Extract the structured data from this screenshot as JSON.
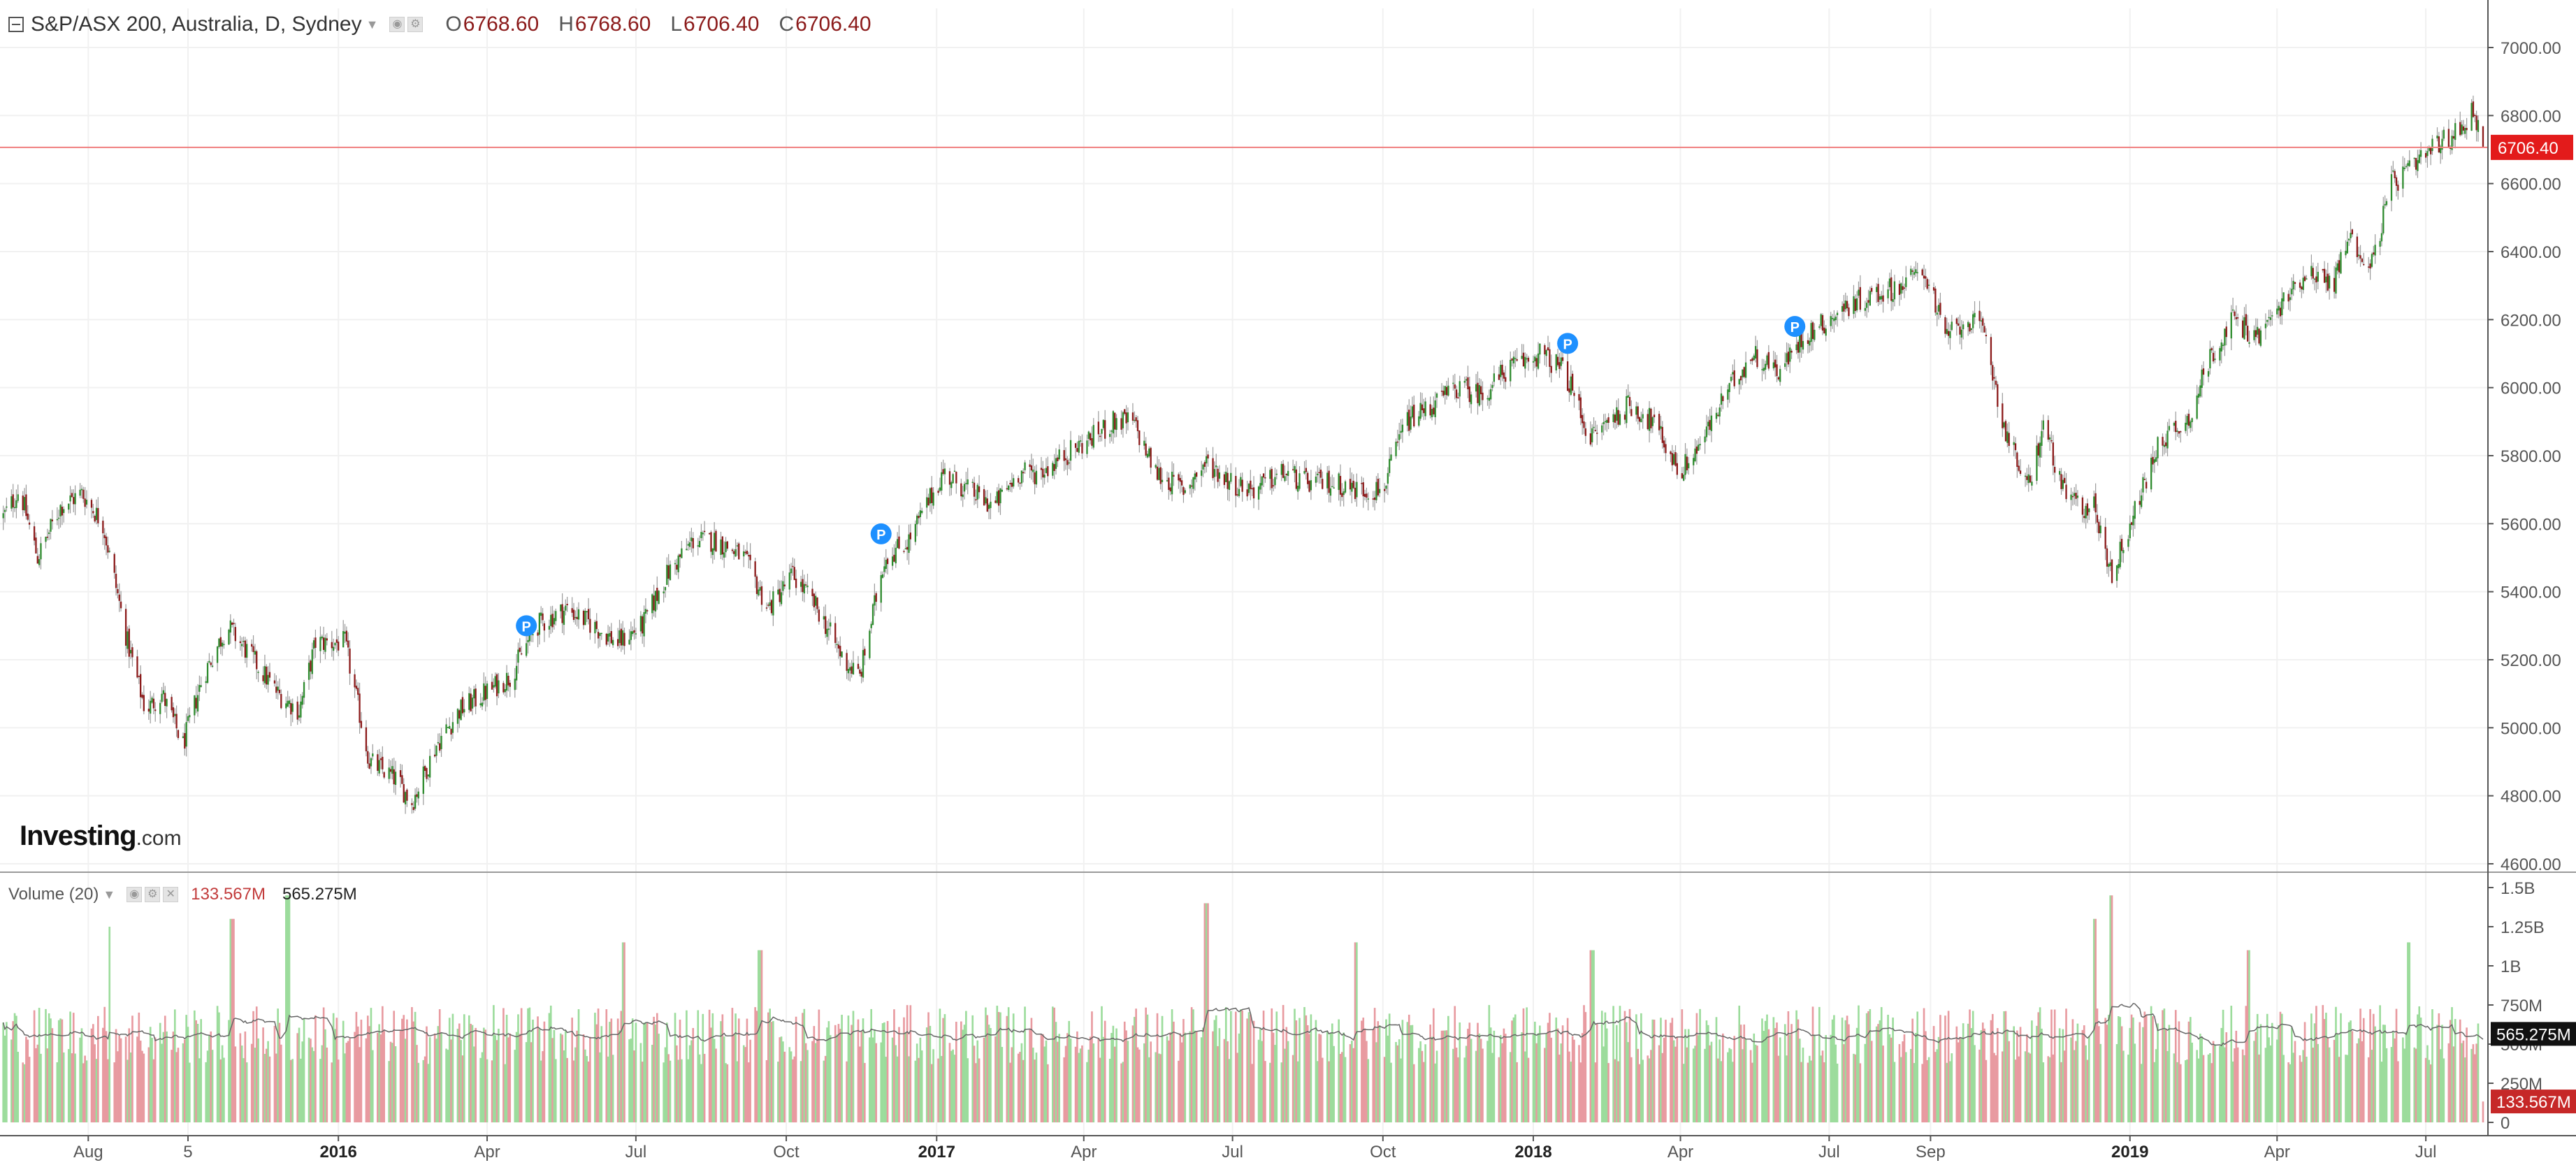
{
  "chart_data": [
    {
      "type": "candlestick",
      "title": "S&P/ASX 200, Australia, D, Sydney",
      "ohlc_labels": {
        "o": "O",
        "h": "H",
        "l": "L",
        "c": "C"
      },
      "ohlc_values": {
        "o": "6768.60",
        "h": "6768.60",
        "l": "6706.40",
        "c": "6706.40"
      },
      "last_price_label": "6706.40",
      "last_price": 6706.4,
      "ylim": [
        4600,
        7000
      ],
      "y_ticks": [
        "4600.00",
        "4800.00",
        "5000.00",
        "5200.00",
        "5400.00",
        "5600.00",
        "5800.00",
        "6000.00",
        "6200.00",
        "6400.00",
        "6600.00",
        "6800.00",
        "7000.00"
      ],
      "x_ticks": [
        {
          "label": "Aug",
          "date": "2015-08",
          "major": false
        },
        {
          "label": "5",
          "date": "2015-10",
          "major": false
        },
        {
          "label": "2016",
          "date": "2016-01",
          "major": true
        },
        {
          "label": "Apr",
          "date": "2016-04",
          "major": false
        },
        {
          "label": "Jul",
          "date": "2016-07",
          "major": false
        },
        {
          "label": "Oct",
          "date": "2016-10",
          "major": false
        },
        {
          "label": "2017",
          "date": "2017-01",
          "major": true
        },
        {
          "label": "Apr",
          "date": "2017-04",
          "major": false
        },
        {
          "label": "Jul",
          "date": "2017-07",
          "major": false
        },
        {
          "label": "Oct",
          "date": "2017-10",
          "major": false
        },
        {
          "label": "2018",
          "date": "2018-01",
          "major": true
        },
        {
          "label": "Apr",
          "date": "2018-04",
          "major": false
        },
        {
          "label": "Jul",
          "date": "2018-07",
          "major": false
        },
        {
          "label": "Sep",
          "date": "2018-09",
          "major": false
        },
        {
          "label": "2019",
          "date": "2019-01",
          "major": true
        },
        {
          "label": "Apr",
          "date": "2019-04",
          "major": false
        },
        {
          "label": "Jul",
          "date": "2019-07",
          "major": false
        }
      ],
      "close_path": [
        [
          "2015-06-10",
          5620
        ],
        [
          "2015-06-20",
          5700
        ],
        [
          "2015-07-01",
          5500
        ],
        [
          "2015-07-15",
          5650
        ],
        [
          "2015-07-28",
          5690
        ],
        [
          "2015-08-10",
          5600
        ],
        [
          "2015-08-25",
          5250
        ],
        [
          "2015-09-05",
          5050
        ],
        [
          "2015-09-15",
          5100
        ],
        [
          "2015-09-28",
          4950
        ],
        [
          "2015-10-10",
          5150
        ],
        [
          "2015-10-25",
          5300
        ],
        [
          "2015-11-10",
          5200
        ],
        [
          "2015-11-25",
          5100
        ],
        [
          "2015-12-08",
          5050
        ],
        [
          "2015-12-18",
          5250
        ],
        [
          "2016-01-05",
          5250
        ],
        [
          "2016-01-20",
          4900
        ],
        [
          "2016-02-05",
          4850
        ],
        [
          "2016-02-15",
          4780
        ],
        [
          "2016-03-01",
          4950
        ],
        [
          "2016-03-15",
          5050
        ],
        [
          "2016-03-30",
          5100
        ],
        [
          "2016-04-15",
          5150
        ],
        [
          "2016-05-01",
          5300
        ],
        [
          "2016-05-20",
          5350
        ],
        [
          "2016-06-05",
          5300
        ],
        [
          "2016-06-20",
          5250
        ],
        [
          "2016-07-05",
          5300
        ],
        [
          "2016-07-20",
          5450
        ],
        [
          "2016-08-05",
          5550
        ],
        [
          "2016-08-20",
          5550
        ],
        [
          "2016-09-05",
          5500
        ],
        [
          "2016-09-20",
          5350
        ],
        [
          "2016-10-05",
          5450
        ],
        [
          "2016-10-20",
          5350
        ],
        [
          "2016-11-05",
          5200
        ],
        [
          "2016-11-15",
          5150
        ],
        [
          "2016-11-30",
          5500
        ],
        [
          "2016-12-15",
          5550
        ],
        [
          "2017-01-05",
          5750
        ],
        [
          "2017-01-20",
          5700
        ],
        [
          "2017-02-05",
          5650
        ],
        [
          "2017-02-20",
          5750
        ],
        [
          "2017-03-05",
          5750
        ],
        [
          "2017-03-20",
          5800
        ],
        [
          "2017-04-05",
          5850
        ],
        [
          "2017-04-20",
          5900
        ],
        [
          "2017-05-01",
          5900
        ],
        [
          "2017-05-15",
          5750
        ],
        [
          "2017-06-01",
          5700
        ],
        [
          "2017-06-15",
          5780
        ],
        [
          "2017-07-01",
          5720
        ],
        [
          "2017-07-15",
          5700
        ],
        [
          "2017-08-01",
          5750
        ],
        [
          "2017-08-15",
          5720
        ],
        [
          "2017-09-01",
          5720
        ],
        [
          "2017-09-15",
          5700
        ],
        [
          "2017-10-01",
          5700
        ],
        [
          "2017-10-15",
          5900
        ],
        [
          "2017-11-01",
          5950
        ],
        [
          "2017-11-15",
          6000
        ],
        [
          "2017-12-01",
          5980
        ],
        [
          "2017-12-15",
          6050
        ],
        [
          "2018-01-05",
          6100
        ],
        [
          "2018-01-20",
          6050
        ],
        [
          "2018-02-05",
          5850
        ],
        [
          "2018-02-15",
          5900
        ],
        [
          "2018-03-01",
          5950
        ],
        [
          "2018-03-15",
          5900
        ],
        [
          "2018-04-01",
          5750
        ],
        [
          "2018-04-15",
          5850
        ],
        [
          "2018-05-01",
          6000
        ],
        [
          "2018-05-15",
          6100
        ],
        [
          "2018-06-01",
          6050
        ],
        [
          "2018-06-15",
          6150
        ],
        [
          "2018-07-01",
          6200
        ],
        [
          "2018-07-15",
          6250
        ],
        [
          "2018-08-01",
          6280
        ],
        [
          "2018-08-15",
          6300
        ],
        [
          "2018-08-28",
          6350
        ],
        [
          "2018-09-10",
          6150
        ],
        [
          "2018-09-25",
          6200
        ],
        [
          "2018-10-05",
          6150
        ],
        [
          "2018-10-15",
          5900
        ],
        [
          "2018-10-30",
          5700
        ],
        [
          "2018-11-10",
          5900
        ],
        [
          "2018-11-20",
          5700
        ],
        [
          "2018-12-01",
          5650
        ],
        [
          "2018-12-10",
          5650
        ],
        [
          "2018-12-21",
          5450
        ],
        [
          "2019-01-05",
          5650
        ],
        [
          "2019-01-20",
          5850
        ],
        [
          "2019-02-05",
          5900
        ],
        [
          "2019-02-20",
          6100
        ],
        [
          "2019-03-05",
          6200
        ],
        [
          "2019-03-20",
          6150
        ],
        [
          "2019-04-05",
          6250
        ],
        [
          "2019-04-20",
          6350
        ],
        [
          "2019-05-05",
          6300
        ],
        [
          "2019-05-15",
          6450
        ],
        [
          "2019-05-28",
          6350
        ],
        [
          "2019-06-10",
          6600
        ],
        [
          "2019-06-25",
          6650
        ],
        [
          "2019-07-05",
          6700
        ],
        [
          "2019-07-20",
          6750
        ],
        [
          "2019-07-30",
          6820
        ],
        [
          "2019-08-02",
          6768.6
        ],
        [
          "2019-08-05",
          6706.4
        ]
      ],
      "up_color": "#2e8b2e",
      "down_color": "#8b1a1a",
      "price_line_color": "#f08080",
      "markers": [
        {
          "date": "2016-04-25",
          "price": 5300,
          "label": "P"
        },
        {
          "date": "2016-11-28",
          "price": 5570,
          "label": "P"
        },
        {
          "date": "2018-01-22",
          "price": 6130,
          "label": "P"
        },
        {
          "date": "2018-06-10",
          "price": 6180,
          "label": "P"
        }
      ],
      "marker_color": "#1e90ff"
    },
    {
      "type": "bar",
      "title": "Volume (20)",
      "ylim": [
        0,
        1500000000
      ],
      "y_ticks": [
        "0",
        "250M",
        "500M",
        "750M",
        "1B",
        "1.25B",
        "1.5B"
      ],
      "last_volume_label": "133.567M",
      "last_volume": 133567000,
      "ma_label": "565.275M",
      "ma_value": 565275000,
      "ma_base": 560000000,
      "up_color": "#9cdc9c",
      "down_color": "#e89aa0",
      "ma_color": "#666666",
      "spikes": [
        [
          "2015-08-15",
          1250000000
        ],
        [
          "2015-10-28",
          1300000000
        ],
        [
          "2015-12-01",
          1450000000
        ],
        [
          "2016-06-24",
          1150000000
        ],
        [
          "2016-09-15",
          1100000000
        ],
        [
          "2017-06-15",
          1400000000
        ],
        [
          "2017-09-15",
          1150000000
        ],
        [
          "2018-02-06",
          1100000000
        ],
        [
          "2018-12-10",
          1300000000
        ],
        [
          "2018-12-21",
          1450000000
        ],
        [
          "2019-03-15",
          1100000000
        ],
        [
          "2019-06-21",
          1150000000
        ]
      ]
    }
  ],
  "ui": {
    "logo_main": "Investing",
    "logo_suffix": ".com"
  }
}
